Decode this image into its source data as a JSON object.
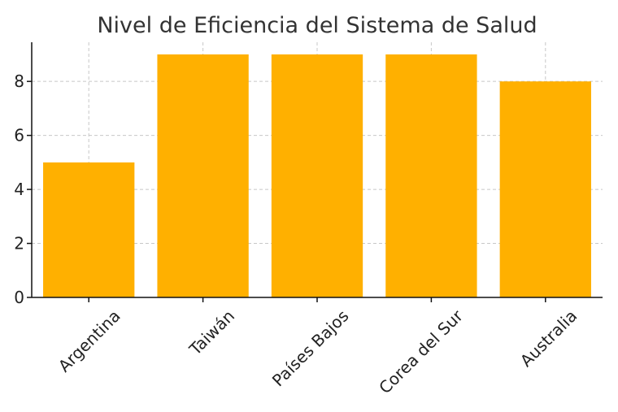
{
  "chart_data": {
    "type": "bar",
    "title": "Nivel de Eficiencia del Sistema de Salud",
    "categories": [
      "Argentina",
      "Taiwán",
      "Países Bajos",
      "Corea del Sur",
      "Australia"
    ],
    "values": [
      5,
      9,
      9,
      9,
      8
    ],
    "xlabel": "",
    "ylabel": "",
    "ylim": [
      0,
      9.45
    ],
    "yticks": [
      0,
      2,
      4,
      6,
      8
    ],
    "bar_color": "#FFB000",
    "grid": true,
    "legend": "none"
  }
}
